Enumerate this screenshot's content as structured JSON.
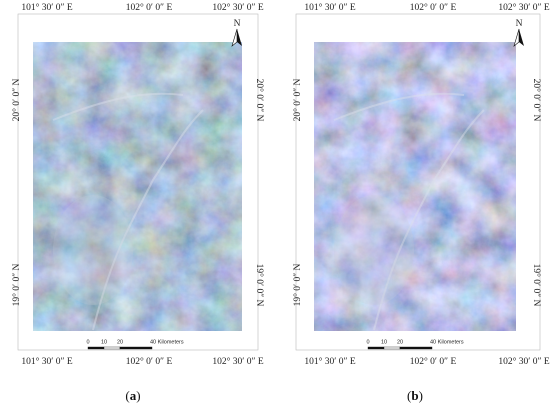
{
  "panels": [
    {
      "caption": {
        "open": "(",
        "letter": "a",
        "close": ")"
      },
      "top_labels": [
        "101° 30′ 0″ E",
        "102° 0′ 0″ E",
        "102° 30′ 0″ E"
      ],
      "bottom_labels": [
        "101° 30′ 0″ E",
        "102° 0′ 0″ E",
        "102° 30′ 0″ E"
      ],
      "left_labels": [
        "20° 0′ 0″ N",
        "19° 0′ 0″ N"
      ],
      "right_labels": [
        "20° 0′ 0″ N",
        "19° 0′ 0″ N"
      ],
      "north": "N",
      "scale_labels": [
        "0",
        "10",
        "20",
        "40 Kilometers"
      ]
    },
    {
      "caption": {
        "open": "(",
        "letter": "b",
        "close": ")"
      },
      "top_labels": [
        "101° 30′ 0″ E",
        "102° 0′ 0″ E",
        "102° 30′ 0″ E"
      ],
      "bottom_labels": [
        "101° 30′ 0″ E",
        "102° 0′ 0″ E",
        "102° 30′ 0″ E"
      ],
      "left_labels": [
        "20° 0′ 0″ N",
        "19° 0′ 0″ N"
      ],
      "right_labels": [
        "20° 0′ 0″ N",
        "19° 0′ 0″ N"
      ],
      "north": "N",
      "scale_labels": [
        "0",
        "10",
        "20",
        "40 Kilometers"
      ]
    }
  ]
}
